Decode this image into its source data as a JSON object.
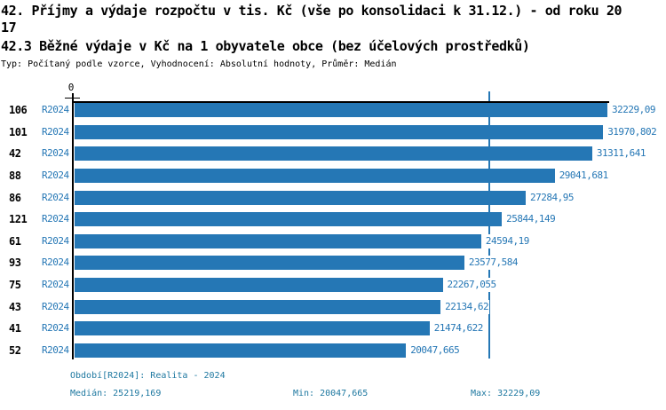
{
  "header": {
    "title_line1": "42. Příjmy a výdaje rozpočtu v tis. Kč (vše po konsolidaci k 31.12.) - od roku 20",
    "title_line2": "17",
    "subtitle": "42.3 Běžné výdaje v Kč na 1 obyvatele obce (bez účelových prostředků)",
    "meta": "Typ: Počítaný podle vzorce, Vyhodnocení: Absolutní hodnoty, Průměr: Medián"
  },
  "chart_data": {
    "type": "bar",
    "orientation": "horizontal",
    "axis_zero_label": "0",
    "period_label": "R2024",
    "categories": [
      "106",
      "101",
      "42",
      "88",
      "86",
      "121",
      "61",
      "93",
      "75",
      "43",
      "41",
      "52"
    ],
    "values": [
      32229.09,
      31970.802,
      31311.641,
      29041.681,
      27284.95,
      25844.149,
      24594.19,
      23577.584,
      22267.055,
      22134.62,
      21474.622,
      20047.665
    ],
    "value_labels": [
      "32229,09",
      "31970,802",
      "31311,641",
      "29041,681",
      "27284,95",
      "25844,149",
      "24594,19",
      "23577,584",
      "22267,055",
      "22134,62",
      "21474,622",
      "20047,665"
    ],
    "median_value": 25219.169,
    "xlim": [
      0,
      32229.09
    ],
    "legend_position": "none",
    "grid": false,
    "bar_color": "#2577b5",
    "label_color": "#2577b5",
    "median_line_color": "#2577b5"
  },
  "footer": {
    "period_info": "Období[R2024]: Realita - 2024",
    "median": "Medián: 25219,169",
    "min": "Min: 20047,665",
    "max": "Max: 32229,09",
    "text_color": "#1e78a0"
  }
}
